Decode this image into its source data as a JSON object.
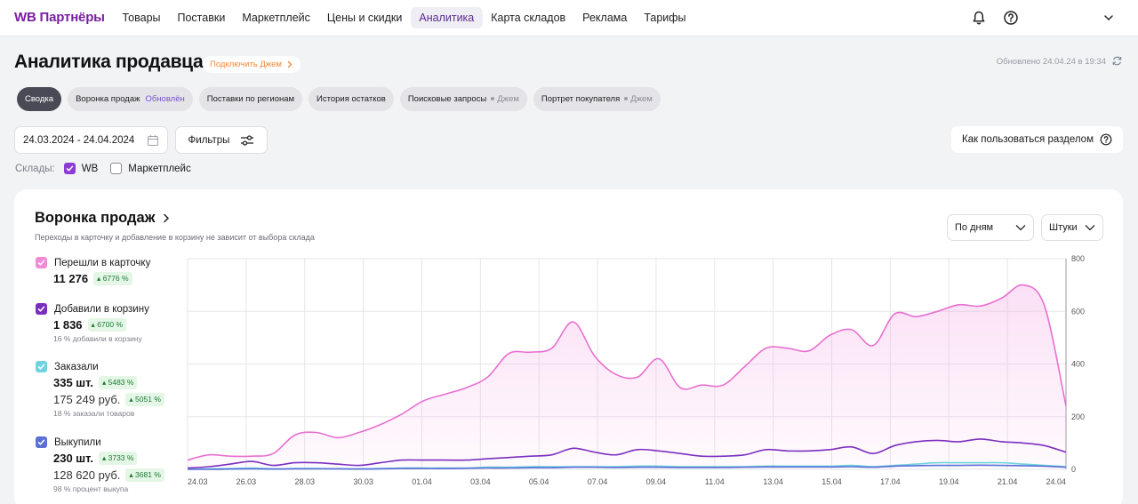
{
  "app": {
    "logo": "WB Партнёры",
    "nav": [
      "Товары",
      "Поставки",
      "Маркетплейс",
      "Цены и скидки",
      "Аналитика",
      "Карта складов",
      "Реклама",
      "Тарифы"
    ],
    "active_nav": "Аналитика"
  },
  "header": {
    "title": "Аналитика продавца",
    "jam_link": "Подключить Джем",
    "updated": "Обновлено 24.04.24 в 19:34"
  },
  "tabs": [
    {
      "label": "Сводка",
      "extra": ""
    },
    {
      "label": "Воронка продаж",
      "extra": "Обновлён"
    },
    {
      "label": "Поставки по регионам",
      "extra": ""
    },
    {
      "label": "История остатков",
      "extra": ""
    },
    {
      "label": "Поисковые запросы",
      "extra": "Джем"
    },
    {
      "label": "Портрет покупателя",
      "extra": "Джем"
    }
  ],
  "filters": {
    "date_range": "24.03.2024 - 24.04.2024",
    "filters_label": "Фильтры",
    "help_label": "Как пользоваться разделом",
    "warehouses_label": "Склады:",
    "warehouse_wb": "WB",
    "warehouse_wb_checked": true,
    "warehouse_mp": "Маркетплейс",
    "warehouse_mp_checked": false
  },
  "funnel": {
    "title": "Воронка продаж",
    "subtitle": "Переходы в карточку и добавление в корзину не зависит от выбора склада",
    "period_select": "По дням",
    "unit_select": "Штуки",
    "metrics": [
      {
        "label": "Перешли в карточку",
        "value": "11 276",
        "badge": "6776 %",
        "value2": "",
        "badge2": "",
        "note": "",
        "color": "#f08bd6"
      },
      {
        "label": "Добавили в корзину",
        "value": "1 836",
        "badge": "6700 %",
        "value2": "",
        "badge2": "",
        "note": "16 % добавили в корзину",
        "color": "#7b2fbf"
      },
      {
        "label": "Заказали",
        "value": "335 шт.",
        "badge": "5483 %",
        "value2": "175 249 руб.",
        "badge2": "5051 %",
        "note": "18 % заказали товаров",
        "color": "#6fd3df"
      },
      {
        "label": "Выкупили",
        "value": "230 шт.",
        "badge": "3733 %",
        "value2": "128 620 руб.",
        "badge2": "3681 %",
        "note": "98 % процент выкупа",
        "color": "#5b6fd6"
      }
    ]
  },
  "chart_data": {
    "type": "line",
    "x_ticks": [
      "24.03",
      "26.03",
      "28.03",
      "30.03",
      "01.04",
      "03.04",
      "05.04",
      "07.04",
      "09.04",
      "11.04",
      "13.04",
      "15.04",
      "17.04",
      "19.04",
      "21.04",
      "24.04"
    ],
    "y_ticks": [
      0,
      200,
      400,
      600,
      800
    ],
    "ylim": [
      0,
      800
    ],
    "grid": true,
    "series": [
      {
        "name": "Перешли в карточку",
        "color": "#e86fd0",
        "fill": true,
        "values": [
          35,
          55,
          50,
          50,
          60,
          130,
          140,
          120,
          140,
          170,
          210,
          260,
          285,
          310,
          350,
          440,
          445,
          460,
          560,
          430,
          360,
          350,
          420,
          310,
          320,
          320,
          390,
          460,
          460,
          450,
          510,
          530,
          470,
          590,
          580,
          600,
          625,
          620,
          650,
          700,
          620,
          240
        ]
      },
      {
        "name": "Добавили в корзину",
        "color": "#7b2fbf",
        "fill": false,
        "values": [
          5,
          10,
          20,
          30,
          15,
          25,
          25,
          20,
          15,
          25,
          35,
          35,
          35,
          35,
          40,
          45,
          50,
          55,
          80,
          65,
          55,
          75,
          70,
          60,
          50,
          50,
          55,
          75,
          70,
          70,
          75,
          85,
          60,
          90,
          105,
          110,
          105,
          115,
          105,
          100,
          90,
          65
        ]
      },
      {
        "name": "Заказали",
        "color": "#6fd3df",
        "fill": false,
        "values": [
          0,
          2,
          3,
          5,
          2,
          3,
          3,
          2,
          2,
          3,
          5,
          5,
          5,
          5,
          8,
          8,
          10,
          10,
          10,
          10,
          10,
          12,
          12,
          10,
          10,
          10,
          10,
          12,
          12,
          12,
          12,
          15,
          10,
          15,
          20,
          25,
          25,
          25,
          25,
          20,
          15,
          10
        ]
      },
      {
        "name": "Выкупили",
        "color": "#5b6fd6",
        "fill": false,
        "values": [
          0,
          0,
          1,
          2,
          1,
          2,
          2,
          2,
          1,
          2,
          3,
          3,
          3,
          4,
          5,
          5,
          6,
          6,
          8,
          8,
          7,
          8,
          8,
          7,
          7,
          7,
          8,
          9,
          9,
          9,
          9,
          10,
          8,
          12,
          14,
          15,
          15,
          16,
          15,
          14,
          12,
          8
        ]
      }
    ]
  }
}
